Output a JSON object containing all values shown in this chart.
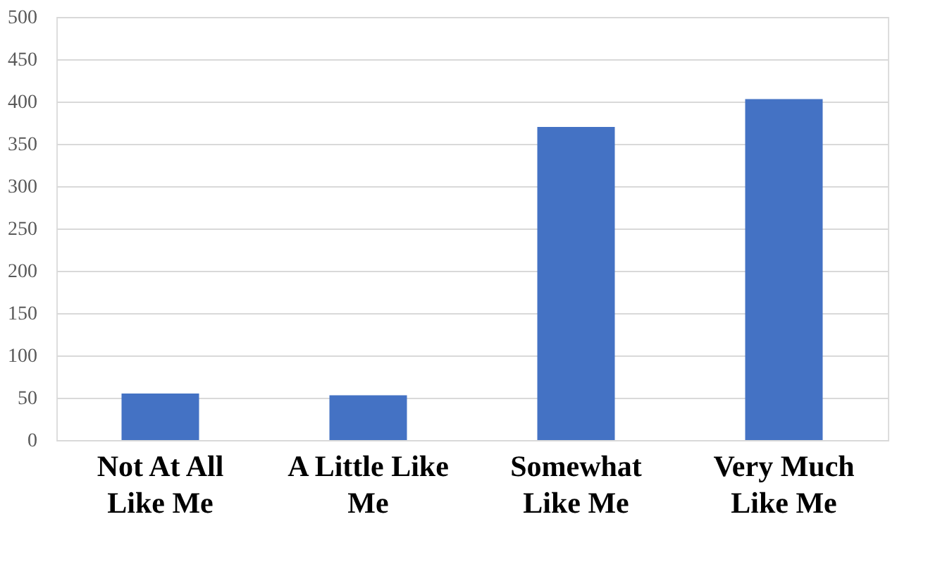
{
  "chart_data": {
    "type": "bar",
    "categories": [
      "Not At All Like Me",
      "A Little Like Me",
      "Somewhat Like Me",
      "Very Much Like Me"
    ],
    "values": [
      55,
      53,
      370,
      403
    ],
    "color": "#4472c4",
    "ylim": [
      0,
      500
    ],
    "yticks": [
      0,
      50,
      100,
      150,
      200,
      250,
      300,
      350,
      400,
      450,
      500
    ],
    "grid": "y"
  }
}
